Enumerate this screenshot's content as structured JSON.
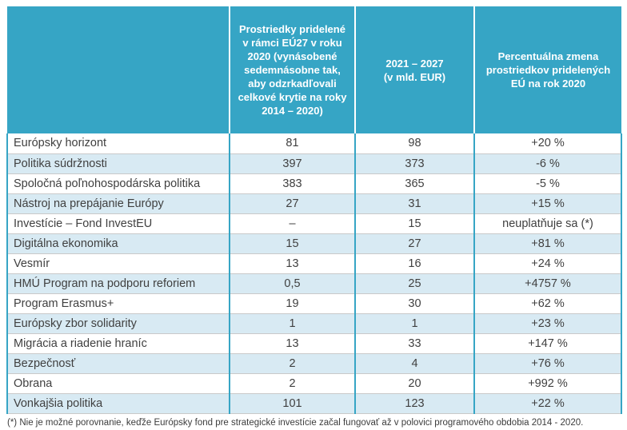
{
  "colors": {
    "header_bg": "#36a5c5",
    "row_alt_bg": "#d8eaf3",
    "grid_teal": "#36a5c5",
    "row_divider": "#c9c9c9",
    "body_text": "#404040",
    "header_text": "#ffffff"
  },
  "table": {
    "columns": [
      {
        "label": ""
      },
      {
        "label": "Prostriedky pridelené v rámci EÚ27 v roku 2020 (vynásobené sedemnásobne tak, aby odzrkadľovali celkové krytie na roky 2014 – 2020)"
      },
      {
        "label": "2021 – 2027\n(v mld. EUR)"
      },
      {
        "label": "Percentuálna zmena prostriedkov pridelených EÚ na rok 2020"
      }
    ],
    "rows": [
      {
        "label": "Európsky horizont",
        "allocation_2020": "81",
        "allocation_2021_2027": "98",
        "change": "+20 %"
      },
      {
        "label": "Politika súdržnosti",
        "allocation_2020": "397",
        "allocation_2021_2027": "373",
        "change": "-6 %"
      },
      {
        "label": "Spoločná poľnohospodárska politika",
        "allocation_2020": "383",
        "allocation_2021_2027": "365",
        "change": "-5 %"
      },
      {
        "label": "Nástroj na prepájanie Európy",
        "allocation_2020": "27",
        "allocation_2021_2027": "31",
        "change": "+15 %"
      },
      {
        "label": "Investície – Fond InvestEU",
        "allocation_2020": "–",
        "allocation_2021_2027": "15",
        "change": "neuplatňuje sa (*)"
      },
      {
        "label": "Digitálna ekonomika",
        "allocation_2020": "15",
        "allocation_2021_2027": "27",
        "change": "+81 %"
      },
      {
        "label": "Vesmír",
        "allocation_2020": "13",
        "allocation_2021_2027": "16",
        "change": "+24 %"
      },
      {
        "label": "HMÚ Program na podporu reforiem",
        "allocation_2020": "0,5",
        "allocation_2021_2027": "25",
        "change": "+4757 %"
      },
      {
        "label": "Program Erasmus+",
        "allocation_2020": "19",
        "allocation_2021_2027": "30",
        "change": "+62 %"
      },
      {
        "label": "Európsky zbor solidarity",
        "allocation_2020": "1",
        "allocation_2021_2027": "1",
        "change": "+23 %"
      },
      {
        "label": "Migrácia a riadenie hraníc",
        "allocation_2020": "13",
        "allocation_2021_2027": "33",
        "change": "+147 %"
      },
      {
        "label": "Bezpečnosť",
        "allocation_2020": "2",
        "allocation_2021_2027": "4",
        "change": "+76 %"
      },
      {
        "label": "Obrana",
        "allocation_2020": "2",
        "allocation_2021_2027": "20",
        "change": "+992 %"
      },
      {
        "label": "Vonkajšia politika",
        "allocation_2020": "101",
        "allocation_2021_2027": "123",
        "change": "+22 %"
      }
    ]
  },
  "footnote": "(*) Nie je možné porovnanie, keďže Európsky fond pre strategické investície začal fungovať až v polovici programového obdobia 2014 - 2020."
}
